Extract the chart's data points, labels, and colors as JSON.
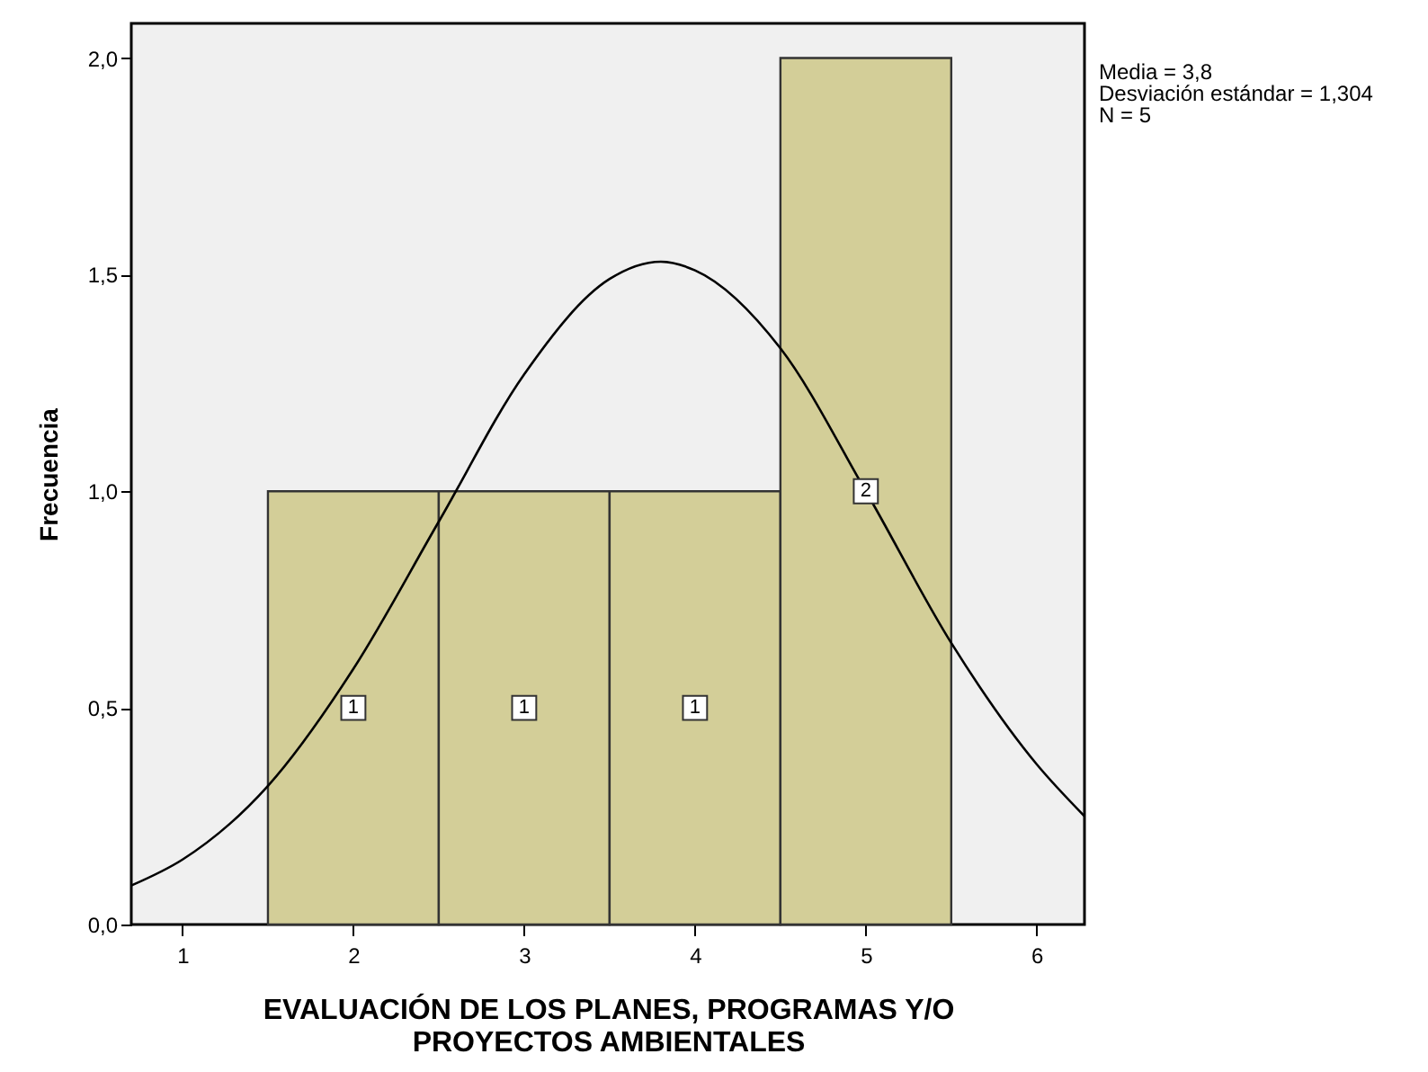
{
  "chart_data": {
    "type": "histogram",
    "xlabel": "EVALUACIÓN DE LOS PLANES, PROGRAMAS Y/O\nPROYECTOS AMBIENTALES",
    "ylabel": "Frecuencia",
    "annotations": [
      "Media = 3,8",
      "Desviación estándar = 1,304",
      "N = 5"
    ],
    "bins": [
      1.5,
      2.5,
      3.5,
      4.5,
      5.5
    ],
    "values": [
      1,
      1,
      1,
      2
    ],
    "color": "#d3ce98",
    "value_labels": [
      "1",
      "1",
      "1",
      "2"
    ],
    "series": [
      {
        "type": "line",
        "color": "#000000",
        "x": [
          0.7,
          1.0,
          1.5,
          2.0,
          2.5,
          3.0,
          3.5,
          3.8,
          4.0,
          4.5,
          5.0,
          5.5,
          6.0,
          6.28
        ],
        "values": [
          0.09,
          0.15,
          0.32,
          0.59,
          0.93,
          1.27,
          1.49,
          1.53,
          1.51,
          1.33,
          1.0,
          0.65,
          0.37,
          0.25
        ]
      }
    ],
    "xlim": [
      0.7,
      6.28
    ],
    "xticks": [
      1,
      2,
      3,
      4,
      5,
      6
    ],
    "ylim": [
      0,
      2.08
    ],
    "yticks": [
      {
        "value": 0,
        "label": "0,0"
      },
      {
        "value": 0.5,
        "label": "0,5"
      },
      {
        "value": 1,
        "label": "1,0"
      },
      {
        "value": 1.5,
        "label": "1,5"
      },
      {
        "value": 2,
        "label": "2,0"
      }
    ],
    "grid": false
  }
}
